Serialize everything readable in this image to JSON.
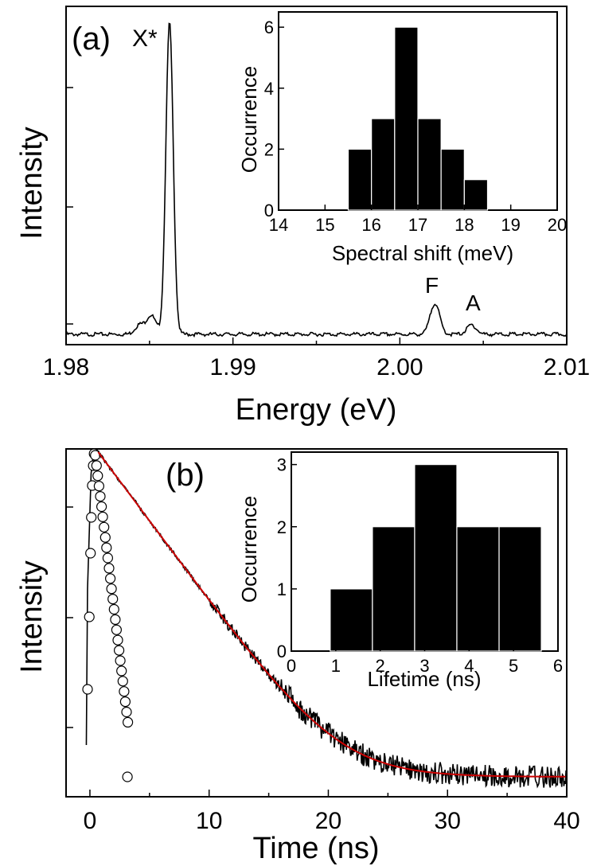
{
  "chart_data": [
    {
      "type": "line",
      "panel_label": "(a)",
      "xlabel": "Energy (eV)",
      "ylabel": "Intensity",
      "xlim": [
        1.98,
        2.01
      ],
      "x_ticks": [
        1.98,
        1.99,
        2.0,
        2.01
      ],
      "x_tick_labels": [
        "1.98",
        "1.99",
        "2.00",
        "2.01"
      ],
      "y_scale": "linear, unlabeled",
      "peaks": [
        {
          "label": "X*",
          "x": 1.9862,
          "height": 1.0
        },
        {
          "label": "",
          "x": 1.9851,
          "height": 0.06
        },
        {
          "label": "",
          "x": 1.9844,
          "height": 0.03
        },
        {
          "label": "F",
          "x": 2.0021,
          "height": 0.1
        },
        {
          "label": "A",
          "x": 2.0043,
          "height": 0.03
        }
      ],
      "annotations": [
        "X*",
        "F",
        "A"
      ],
      "inset": {
        "type": "bar",
        "xlabel": "Spectral shift (meV)",
        "ylabel": "Occurrence",
        "xlim": [
          14,
          20
        ],
        "ylim": [
          0,
          6.5
        ],
        "x_ticks": [
          14,
          15,
          16,
          17,
          18,
          19,
          20
        ],
        "y_ticks": [
          0,
          2,
          4,
          6
        ],
        "bin_width": 0.5,
        "bin_centers": [
          15.75,
          16.25,
          16.75,
          17.25,
          17.75,
          18.25
        ],
        "values": [
          2,
          3,
          6,
          3,
          2,
          1
        ]
      }
    },
    {
      "type": "line",
      "panel_label": "(b)",
      "xlabel": "Time (ns)",
      "ylabel": "Intensity",
      "xlim": [
        -2,
        40
      ],
      "x_ticks": [
        0,
        10,
        20,
        30,
        40
      ],
      "y_scale": "log, unlabeled",
      "series": [
        {
          "style": "open circles"
        },
        {
          "style": "black line"
        },
        {
          "style": "red line"
        }
      ],
      "inset": {
        "type": "bar",
        "xlabel": "Lifetime (ns)",
        "ylabel": "Occurrence",
        "xlim": [
          0,
          6
        ],
        "ylim": [
          0,
          3.2
        ],
        "x_ticks": [
          0,
          1,
          2,
          3,
          4,
          5,
          6
        ],
        "y_ticks": [
          0,
          1,
          2,
          3
        ],
        "bin_width": 0.95,
        "bin_centers": [
          1.35,
          2.3,
          3.25,
          4.2,
          5.15
        ],
        "values": [
          1,
          2,
          3,
          2,
          2
        ]
      }
    }
  ]
}
